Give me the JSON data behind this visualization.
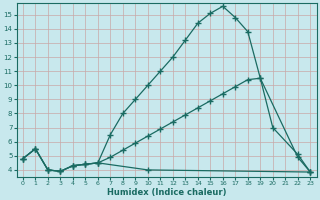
{
  "xlabel": "Humidex (Indice chaleur)",
  "xlim": [
    -0.5,
    23.5
  ],
  "ylim": [
    3.5,
    15.8
  ],
  "xticks": [
    0,
    1,
    2,
    3,
    4,
    5,
    6,
    7,
    8,
    9,
    10,
    11,
    12,
    13,
    14,
    15,
    16,
    17,
    18,
    19,
    20,
    21,
    22,
    23
  ],
  "yticks": [
    4,
    5,
    6,
    7,
    8,
    9,
    10,
    11,
    12,
    13,
    14,
    15
  ],
  "bg_color": "#c8e8ed",
  "line_color": "#1a6b62",
  "grid_color_h": "#c8a8a8",
  "grid_color_v": "#c8a8a8",
  "curve1_x": [
    0,
    1,
    2,
    3,
    4,
    5,
    6,
    7,
    8,
    9,
    10,
    11,
    12,
    13,
    14,
    15,
    16,
    17,
    18,
    19,
    22,
    23
  ],
  "curve1_y": [
    4.8,
    5.5,
    4.0,
    3.9,
    4.3,
    4.4,
    4.5,
    6.5,
    8.0,
    9.0,
    10.0,
    11.0,
    12.0,
    13.2,
    14.4,
    15.1,
    15.6,
    14.8,
    13.8,
    10.5,
    4.9,
    3.85
  ],
  "curve2_x": [
    0,
    1,
    2,
    3,
    4,
    5,
    6,
    7,
    8,
    9,
    10,
    11,
    12,
    13,
    14,
    15,
    16,
    17,
    18,
    19,
    20,
    22,
    23
  ],
  "curve2_y": [
    4.8,
    5.5,
    4.0,
    3.9,
    4.3,
    4.4,
    4.5,
    4.9,
    5.4,
    5.9,
    6.4,
    6.9,
    7.4,
    7.9,
    8.4,
    8.9,
    9.4,
    9.9,
    10.4,
    10.5,
    7.0,
    5.1,
    3.85
  ],
  "curve3_x": [
    0,
    1,
    2,
    3,
    4,
    5,
    6,
    10,
    23
  ],
  "curve3_y": [
    4.8,
    5.5,
    4.0,
    3.9,
    4.3,
    4.4,
    4.5,
    4.0,
    3.85
  ]
}
